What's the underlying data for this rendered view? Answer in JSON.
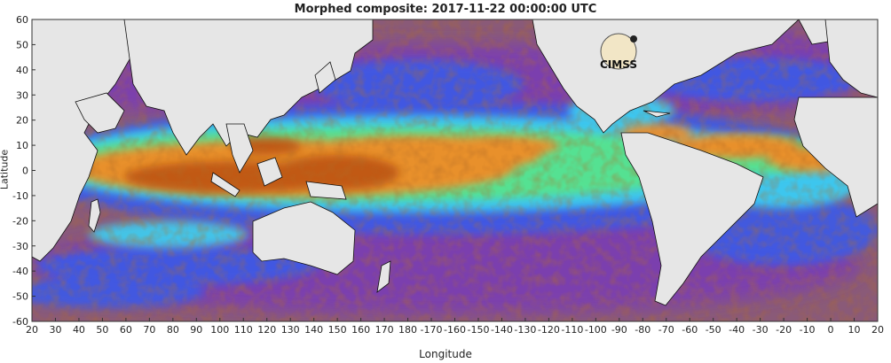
{
  "title": "Morphed composite: 2017-11-22 00:00:00 UTC",
  "xlabel": "Longitude",
  "ylabel": "Latitude",
  "x_ticks": [
    "20",
    "30",
    "40",
    "50",
    "60",
    "70",
    "80",
    "90",
    "100",
    "110",
    "120",
    "130",
    "140",
    "150",
    "160",
    "170",
    "180",
    "-170",
    "-160",
    "-150",
    "-140",
    "-130",
    "-120",
    "-110",
    "-100",
    "-90",
    "-80",
    "-70",
    "-60",
    "-50",
    "-40",
    "-30",
    "-20",
    "-10",
    "0",
    "10",
    "20"
  ],
  "y_ticks": [
    "60",
    "50",
    "40",
    "30",
    "20",
    "10",
    "0",
    "-10",
    "-20",
    "-30",
    "-40",
    "-50",
    "-60"
  ],
  "logo_text": "CIMSS",
  "colors": {
    "ocean_dry": "#8a5a78",
    "purple": "#7a3cb4",
    "blue": "#3c5ae6",
    "cyan": "#3cd2f0",
    "green": "#5ae682",
    "orange": "#f08c28",
    "dark_orange": "#b4460a",
    "land": "#e6e6e6"
  }
}
